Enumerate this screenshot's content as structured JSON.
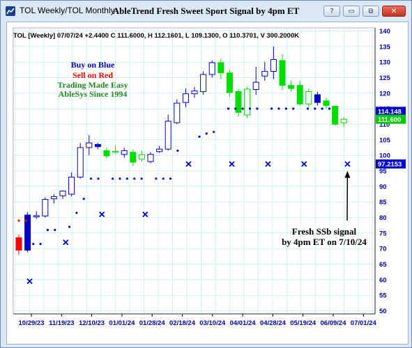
{
  "window": {
    "tab_title": "TOL Weekly/TOL Monthly",
    "chart_title": "AbleTrend Fresh Sweet Sport Signal by 4pm ET",
    "buttons": [
      "?",
      "▭",
      "⧉",
      "✕"
    ]
  },
  "chart_data": {
    "type": "candlestick",
    "ticker": "TOL",
    "info_line": "TOL [Weekly] 07/07/24 +2.4400 C 111.6000, H 112.1601, L 109.1300, O 110.3701, V 300.2000K",
    "x_tick_labels": [
      "10/29/23",
      "11/19/23",
      "12/10/23",
      "01/01/24",
      "01/28/24",
      "02/18/24",
      "03/10/24",
      "04/01/24",
      "04/28/24",
      "05/19/24",
      "06/09/24",
      "07/01/24"
    ],
    "y_ticks": [
      50,
      55,
      60,
      65,
      70,
      75,
      80,
      85,
      90,
      95,
      100,
      105,
      110,
      115,
      120,
      125,
      130,
      135,
      140
    ],
    "ylim": [
      49,
      141
    ],
    "grid": true,
    "price_tags": [
      {
        "value": 114.148,
        "label": "114.148",
        "color": "#0000cc"
      },
      {
        "value": 111.6,
        "label": "111.600",
        "color": "#00cc00"
      },
      {
        "value": 97.2153,
        "label": "97.2153",
        "color": "#0000cc"
      }
    ],
    "candles": [
      {
        "o": 73.5,
        "h": 74.5,
        "l": 68.0,
        "c": 69.5,
        "color": "red",
        "filled": true
      },
      {
        "o": 69.5,
        "h": 81.8,
        "l": 68.8,
        "c": 80.8,
        "color": "blue",
        "filled": true
      },
      {
        "o": 80.2,
        "h": 82.0,
        "l": 79.5,
        "c": 80.6,
        "color": "blue",
        "filled": false
      },
      {
        "o": 80.5,
        "h": 86.5,
        "l": 80.0,
        "c": 85.8,
        "color": "blue",
        "filled": false
      },
      {
        "o": 86.0,
        "h": 87.5,
        "l": 84.5,
        "c": 86.7,
        "color": "blue",
        "filled": false
      },
      {
        "o": 87.0,
        "h": 88.8,
        "l": 86.0,
        "c": 88.5,
        "color": "blue",
        "filled": false
      },
      {
        "o": 87.5,
        "h": 94.5,
        "l": 86.8,
        "c": 93.0,
        "color": "blue",
        "filled": false
      },
      {
        "o": 93.0,
        "h": 104.0,
        "l": 92.5,
        "c": 102.5,
        "color": "blue",
        "filled": false
      },
      {
        "o": 102.5,
        "h": 106.5,
        "l": 100.0,
        "c": 104.0,
        "color": "blue",
        "filled": false
      },
      {
        "o": 103.5,
        "h": 104.0,
        "l": 102.0,
        "c": 102.8,
        "color": "blue",
        "filled": true
      },
      {
        "o": 101.5,
        "h": 102.5,
        "l": 99.0,
        "c": 99.8,
        "color": "green",
        "filled": true
      },
      {
        "o": 101.0,
        "h": 103.0,
        "l": 100.5,
        "c": 101.3,
        "color": "green",
        "filled": false
      },
      {
        "o": 101.5,
        "h": 102.5,
        "l": 99.2,
        "c": 100.3,
        "color": "blue",
        "filled": false
      },
      {
        "o": 101.0,
        "h": 101.8,
        "l": 96.5,
        "c": 97.8,
        "color": "green",
        "filled": true
      },
      {
        "o": 98.8,
        "h": 101.5,
        "l": 98.0,
        "c": 100.2,
        "color": "green",
        "filled": false
      },
      {
        "o": 98.0,
        "h": 101.0,
        "l": 97.5,
        "c": 100.3,
        "color": "blue",
        "filled": false
      },
      {
        "o": 101.2,
        "h": 103.0,
        "l": 100.8,
        "c": 102.0,
        "color": "blue",
        "filled": false
      },
      {
        "o": 102.0,
        "h": 113.0,
        "l": 101.5,
        "c": 111.0,
        "color": "blue",
        "filled": false
      },
      {
        "o": 110.5,
        "h": 118.0,
        "l": 110.0,
        "c": 116.8,
        "color": "blue",
        "filled": false
      },
      {
        "o": 117.0,
        "h": 121.5,
        "l": 115.5,
        "c": 119.8,
        "color": "blue",
        "filled": false
      },
      {
        "o": 119.8,
        "h": 122.0,
        "l": 118.5,
        "c": 120.7,
        "color": "blue",
        "filled": false
      },
      {
        "o": 120.5,
        "h": 127.0,
        "l": 119.5,
        "c": 126.0,
        "color": "blue",
        "filled": false
      },
      {
        "o": 126.0,
        "h": 130.5,
        "l": 125.0,
        "c": 129.8,
        "color": "blue",
        "filled": false
      },
      {
        "o": 129.8,
        "h": 131.0,
        "l": 124.5,
        "c": 126.5,
        "color": "green",
        "filled": true
      },
      {
        "o": 126.5,
        "h": 127.5,
        "l": 119.0,
        "c": 120.2,
        "color": "green",
        "filled": true
      },
      {
        "o": 120.5,
        "h": 121.5,
        "l": 112.5,
        "c": 113.8,
        "color": "green",
        "filled": true
      },
      {
        "o": 113.0,
        "h": 122.0,
        "l": 112.0,
        "c": 121.3,
        "color": "green",
        "filled": false
      },
      {
        "o": 121.2,
        "h": 128.5,
        "l": 119.5,
        "c": 123.5,
        "color": "blue",
        "filled": false
      },
      {
        "o": 125.5,
        "h": 130.0,
        "l": 124.0,
        "c": 127.0,
        "color": "blue",
        "filled": false
      },
      {
        "o": 127.0,
        "h": 135.0,
        "l": 124.5,
        "c": 130.8,
        "color": "blue",
        "filled": false
      },
      {
        "o": 130.5,
        "h": 132.5,
        "l": 121.0,
        "c": 122.5,
        "color": "green",
        "filled": true
      },
      {
        "o": 122.5,
        "h": 124.0,
        "l": 120.5,
        "c": 121.5,
        "color": "green",
        "filled": true
      },
      {
        "o": 122.5,
        "h": 124.0,
        "l": 116.0,
        "c": 116.5,
        "color": "green",
        "filled": true
      },
      {
        "o": 116.5,
        "h": 121.5,
        "l": 115.5,
        "c": 120.5,
        "color": "green",
        "filled": false
      },
      {
        "o": 117.0,
        "h": 120.5,
        "l": 116.0,
        "c": 119.5,
        "color": "blue",
        "filled": true
      },
      {
        "o": 117.5,
        "h": 118.5,
        "l": 115.0,
        "c": 116.0,
        "color": "green",
        "filled": true
      },
      {
        "o": 115.8,
        "h": 116.0,
        "l": 109.5,
        "c": 110.0,
        "color": "green",
        "filled": true
      },
      {
        "o": 110.4,
        "h": 112.2,
        "l": 109.1,
        "c": 111.6,
        "color": "green",
        "filled": false
      }
    ],
    "red_stop_dots": [
      {
        "i": 0,
        "v": 79.0
      },
      {
        "i": 1,
        "v": 79.0
      }
    ],
    "blue_stop_dots": [
      {
        "i": 2,
        "v": 71.5
      },
      {
        "i": 3,
        "v": 71.5
      },
      {
        "i": 4,
        "v": 76.0
      },
      {
        "i": 5,
        "v": 76.0
      },
      {
        "i": 7,
        "v": 77.0
      },
      {
        "i": 8,
        "v": 81.5
      },
      {
        "i": 9,
        "v": 86.0
      },
      {
        "i": 10,
        "v": 92.5
      },
      {
        "i": 11,
        "v": 92.5
      },
      {
        "i": 13,
        "v": 92.5
      },
      {
        "i": 14,
        "v": 92.5
      },
      {
        "i": 15,
        "v": 92.5
      },
      {
        "i": 16,
        "v": 92.5
      },
      {
        "i": 17,
        "v": 92.5
      },
      {
        "i": 19,
        "v": 92.5
      },
      {
        "i": 20,
        "v": 92.5
      },
      {
        "i": 21,
        "v": 92.5
      },
      {
        "i": 22,
        "v": 101.5
      },
      {
        "i": 25,
        "v": 106.0
      },
      {
        "i": 26,
        "v": 107.0
      },
      {
        "i": 27,
        "v": 107.5
      },
      {
        "i": 29,
        "v": 115.0
      },
      {
        "i": 30,
        "v": 115.0
      },
      {
        "i": 31,
        "v": 115.0
      },
      {
        "i": 32,
        "v": 115.0
      },
      {
        "i": 33,
        "v": 115.0
      },
      {
        "i": 35,
        "v": 115.0
      },
      {
        "i": 36,
        "v": 115.0
      },
      {
        "i": 37,
        "v": 115.0
      },
      {
        "i": 38,
        "v": 115.0
      },
      {
        "i": 40,
        "v": 115.0
      },
      {
        "i": 41,
        "v": 115.0
      },
      {
        "i": 42,
        "v": 115.0
      },
      {
        "i": 43,
        "v": 115.0
      }
    ],
    "x_markers": [
      {
        "i": 1.5,
        "v": 59.5
      },
      {
        "i": 6.5,
        "v": 72.0
      },
      {
        "i": 11.5,
        "v": 81.0
      },
      {
        "i": 17.5,
        "v": 81.0
      },
      {
        "i": 23.5,
        "v": 97.2
      },
      {
        "i": 29.5,
        "v": 97.2
      },
      {
        "i": 34.5,
        "v": 97.2
      },
      {
        "i": 39.5,
        "v": 97.2
      },
      {
        "i": 45.5,
        "v": 97.2
      }
    ],
    "legend_lines": [
      {
        "text": "Buy on Blue",
        "color": "#0000cc"
      },
      {
        "text": "Sell on Red",
        "color": "#ff0000"
      },
      {
        "text": "Trading Made Easy",
        "color": "#228822"
      },
      {
        "text": "AbleSys Since 1994",
        "color": "#228822"
      }
    ],
    "annotation": {
      "lines": [
        "Fresh SSb signal",
        "by 4pm ET on 7/10/24"
      ],
      "arrow_to": {
        "i": 45.5,
        "v": 95.0
      }
    }
  }
}
